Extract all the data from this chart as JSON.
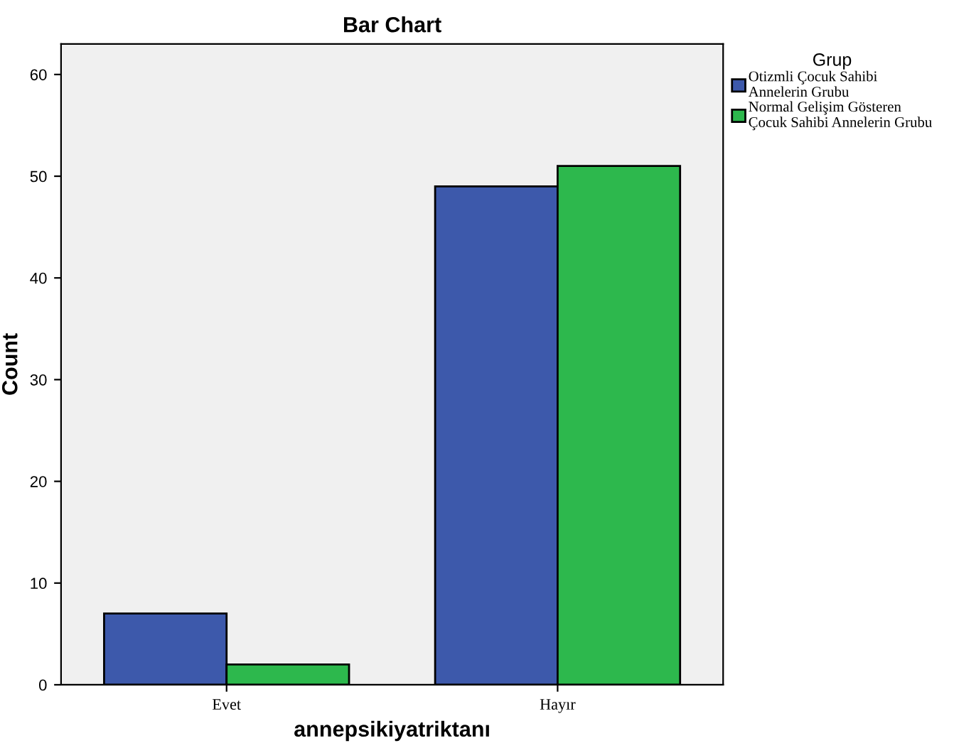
{
  "chart_data": {
    "type": "bar",
    "title": "Bar Chart",
    "xlabel": "annepsikiyatriktanı",
    "ylabel": "Count",
    "legend_title": "Grup",
    "categories": [
      "Evet",
      "Hayır"
    ],
    "series": [
      {
        "name": "Otizmli Çocuk Sahibi\nAnnelerin Grubu",
        "color": "#3d59ab",
        "values": [
          7,
          49
        ]
      },
      {
        "name": "Normal Gelişim Gösteren\nÇocuk Sahibi Annelerin Grubu",
        "color": "#2db84d",
        "values": [
          2,
          51
        ]
      }
    ],
    "ylim": [
      0,
      63
    ],
    "yticks": [
      0,
      10,
      20,
      30,
      40,
      50,
      60
    ],
    "grid": false,
    "legend": "top right"
  }
}
